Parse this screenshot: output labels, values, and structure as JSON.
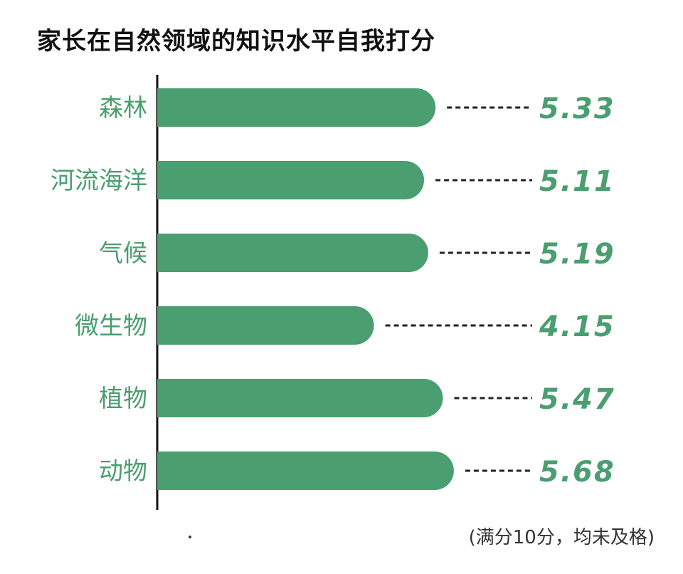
{
  "chart_data": {
    "type": "bar",
    "orientation": "horizontal",
    "title": "家长在自然领域的知识水平自我打分",
    "categories": [
      "森林",
      "河流海洋",
      "气候",
      "微生物",
      "植物",
      "动物"
    ],
    "values": [
      5.33,
      5.11,
      5.19,
      4.15,
      5.47,
      5.68
    ],
    "value_labels": [
      "5.33",
      "5.11",
      "5.19",
      "4.15",
      "5.47",
      "5.68"
    ],
    "xlim": [
      0,
      10
    ],
    "grid": false,
    "legend": "none",
    "note": "(满分10分，均未及格)",
    "colors": {
      "bar": "#4a9e6f",
      "label": "#4a9e6f",
      "axis": "#111111",
      "leader": "#222222"
    }
  }
}
